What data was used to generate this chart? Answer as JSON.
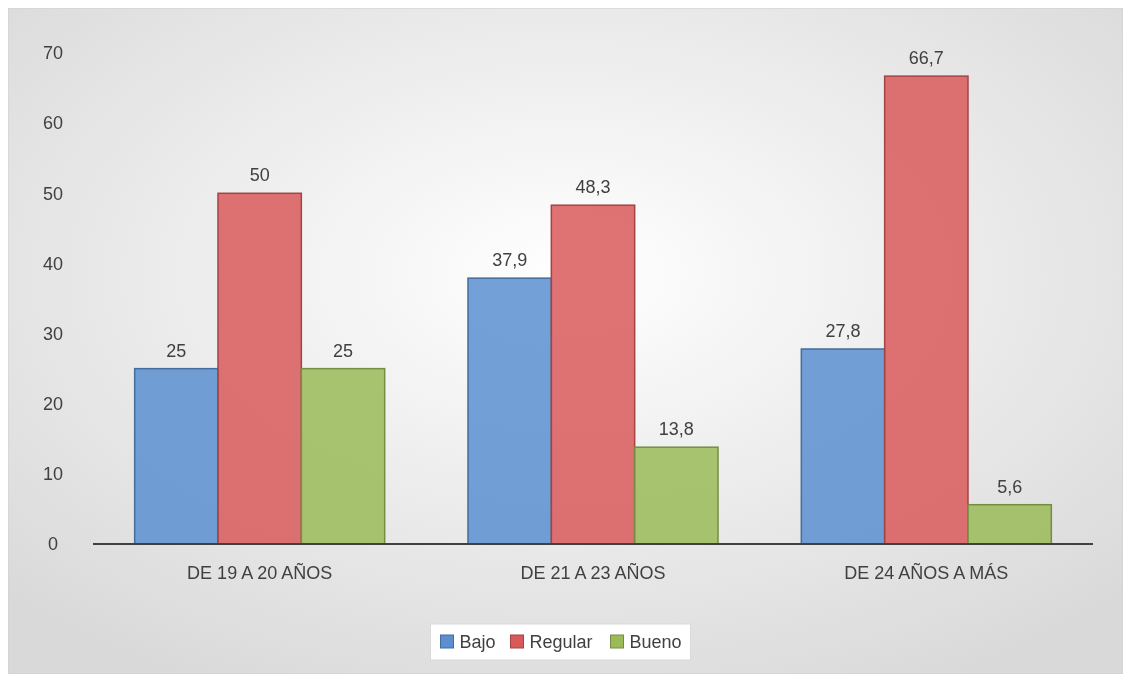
{
  "chart_data": {
    "type": "bar",
    "categories": [
      "DE 19 A 20 AÑOS",
      "DE 21 A 23 AÑOS",
      "DE 24 AÑOS A MÁS"
    ],
    "series": [
      {
        "name": "Bajo",
        "color": "#5b8fd0",
        "values": [
          25,
          37.9,
          27.8
        ],
        "value_labels": [
          "25",
          "37,9",
          "27,8"
        ]
      },
      {
        "name": "Regular",
        "color": "#d9595a",
        "values": [
          50,
          48.3,
          66.7
        ],
        "value_labels": [
          "50",
          "48,3",
          "66,7"
        ]
      },
      {
        "name": "Bueno",
        "color": "#9bbb59",
        "values": [
          25,
          13.8,
          5.6
        ],
        "value_labels": [
          "25",
          "13,8",
          "5,6"
        ]
      }
    ],
    "ylim": [
      0,
      70
    ],
    "yticks": [
      0,
      10,
      20,
      30,
      40,
      50,
      60,
      70
    ],
    "grid": false,
    "legend": "bottom"
  }
}
